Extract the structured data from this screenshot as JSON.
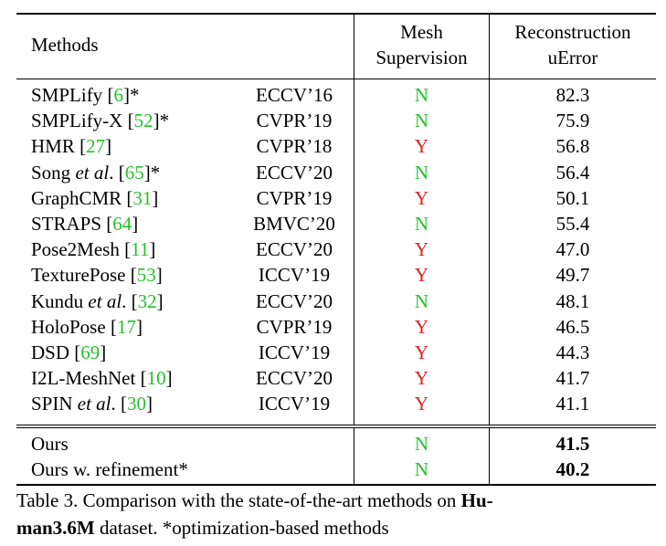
{
  "header": {
    "methods": "Methods",
    "mesh_line1": "Mesh",
    "mesh_line2": "Supervision",
    "recon_line1": "Reconstruction",
    "recon_line2": "uError"
  },
  "rows": [
    {
      "name": "SMPLify",
      "italic": "",
      "rest": "",
      "cite": "6",
      "star": "*",
      "venue": "ECCV’16",
      "mesh": "N",
      "error": "82.3"
    },
    {
      "name": "SMPLify-X",
      "italic": "",
      "rest": "",
      "cite": "52",
      "star": "*",
      "venue": "CVPR’19",
      "mesh": "N",
      "error": "75.9"
    },
    {
      "name": "HMR",
      "italic": "",
      "rest": "",
      "cite": "27",
      "star": "",
      "venue": "CVPR’18",
      "mesh": "Y",
      "error": "56.8"
    },
    {
      "name": "Song ",
      "italic": "et al",
      "rest": ".",
      "cite": "65",
      "star": "*",
      "venue": "ECCV’20",
      "mesh": "N",
      "error": "56.4"
    },
    {
      "name": "GraphCMR",
      "italic": "",
      "rest": "",
      "cite": "31",
      "star": "",
      "venue": "CVPR’19",
      "mesh": "Y",
      "error": "50.1"
    },
    {
      "name": "STRAPS",
      "italic": "",
      "rest": "",
      "cite": "64",
      "star": "",
      "venue": "BMVC’20",
      "mesh": "N",
      "error": "55.4"
    },
    {
      "name": "Pose2Mesh",
      "italic": "",
      "rest": "",
      "cite": "11",
      "star": "",
      "venue": "ECCV’20",
      "mesh": "Y",
      "error": "47.0"
    },
    {
      "name": "TexturePose",
      "italic": "",
      "rest": "",
      "cite": "53",
      "star": "",
      "venue": "ICCV’19",
      "mesh": "Y",
      "error": "49.7"
    },
    {
      "name": "Kundu ",
      "italic": "et al",
      "rest": ".",
      "cite": "32",
      "star": "",
      "venue": "ECCV’20",
      "mesh": "N",
      "error": "48.1"
    },
    {
      "name": "HoloPose",
      "italic": "",
      "rest": "",
      "cite": "17",
      "star": "",
      "venue": "CVPR’19",
      "mesh": "Y",
      "error": "46.5"
    },
    {
      "name": "DSD",
      "italic": "",
      "rest": "",
      "cite": "69",
      "star": "",
      "venue": "ICCV’19",
      "mesh": "Y",
      "error": "44.3"
    },
    {
      "name": "I2L-MeshNet",
      "italic": "",
      "rest": "",
      "cite": "10",
      "star": "",
      "venue": "ECCV’20",
      "mesh": "Y",
      "error": "41.7"
    },
    {
      "name": "SPIN ",
      "italic": "et al",
      "rest": ".",
      "cite": "30",
      "star": "",
      "venue": "ICCV’19",
      "mesh": "Y",
      "error": "41.1"
    }
  ],
  "ours": [
    {
      "name": "Ours",
      "mesh": "N",
      "error": "41.5"
    },
    {
      "name": "Ours w. refinement*",
      "mesh": "N",
      "error": "40.2"
    }
  ],
  "caption": {
    "prefix": "Table 3. Comparison with the state-of-the-art methods on ",
    "bold1": "Hu-",
    "bold2": "man3.6M",
    "suffix": " dataset. *optimization-based methods"
  }
}
